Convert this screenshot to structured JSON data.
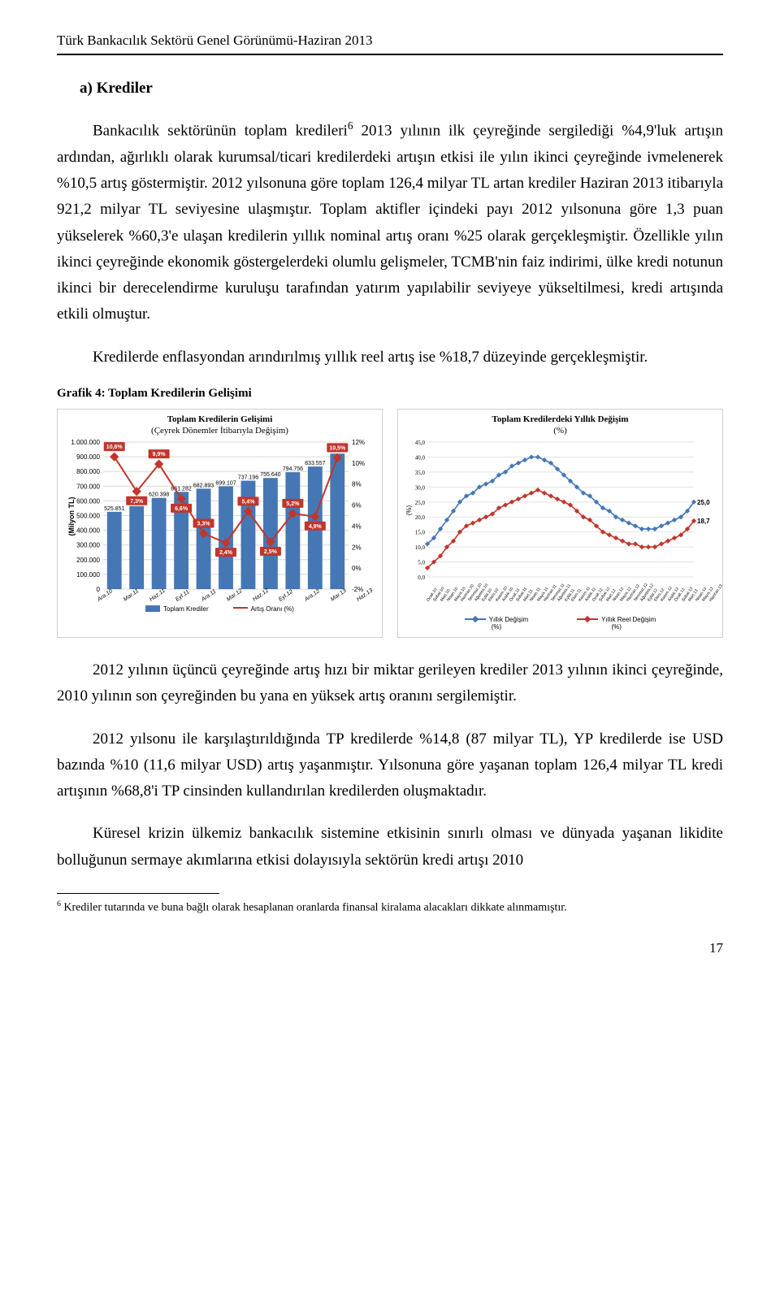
{
  "header": "Türk Bankacılık Sektörü Genel Görünümü-Haziran 2013",
  "section_heading": "a) Krediler",
  "paragraphs": {
    "p1_a": "Bankacılık sektörünün toplam kredileri",
    "p1_sup": "6",
    "p1_b": " 2013 yılının ilk çeyreğinde sergilediği %4,9'luk artışın ardından, ağırlıklı olarak kurumsal/ticari kredilerdeki artışın etkisi ile yılın ikinci çeyreğinde ivmelenerek %10,5 artış göstermiştir. 2012 yılsonuna göre toplam 126,4 milyar TL artan krediler Haziran 2013 itibarıyla 921,2 milyar TL seviyesine ulaşmıştır. Toplam aktifler içindeki payı 2012 yılsonuna göre 1,3 puan yükselerek %60,3'e ulaşan kredilerin yıllık nominal artış oranı %25 olarak gerçekleşmiştir. Özellikle yılın ikinci çeyreğinde ekonomik göstergelerdeki olumlu gelişmeler, TCMB'nin faiz indirimi, ülke kredi notunun ikinci bir derecelendirme kuruluşu tarafından yatırım yapılabilir seviyeye yükseltilmesi, kredi artışında etkili olmuştur.",
    "p2": "Kredilerde enflasyondan arındırılmış yıllık reel artış ise %18,7 düzeyinde gerçekleşmiştir.",
    "p3": "2012 yılının üçüncü çeyreğinde artış hızı bir miktar gerileyen krediler 2013 yılının ikinci çeyreğinde, 2010 yılının son çeyreğinden bu yana en yüksek artış oranını sergilemiştir.",
    "p4": "2012 yılsonu ile karşılaştırıldığında TP kredilerde %14,8 (87 milyar TL), YP kredilerde ise USD bazında %10 (11,6 milyar USD) artış yaşanmıştır. Yılsonuna göre yaşanan toplam 126,4 milyar TL kredi artışının %68,8'i TP cinsinden kullandırılan kredilerden oluşmaktadır.",
    "p5": "Küresel krizin ülkemiz bankacılık sistemine etkisinin sınırlı olması ve dünyada yaşanan likidite bolluğunun sermaye akımlarına etkisi dolayısıyla sektörün kredi artışı 2010"
  },
  "chart_heading": "Grafik 4: Toplam Kredilerin Gelişimi",
  "chart_left": {
    "title": "Toplam Kredilerin Gelişimi",
    "subtitle": "(Çeyrek Dönemler İtibarıyla Değişim)",
    "y_title": "(Milyon TL)",
    "y_ticks": [
      0,
      100000,
      200000,
      300000,
      400000,
      500000,
      600000,
      700000,
      800000,
      900000,
      1000000
    ],
    "y_tick_labels": [
      "0",
      "100.000",
      "200.000",
      "300.000",
      "400.000",
      "500.000",
      "600.000",
      "700.000",
      "800.000",
      "900.000",
      "1.000.000"
    ],
    "x_labels": [
      "Ara.10",
      "Mar.11",
      "Haz.11",
      "Eyl.11",
      "Ara.11",
      "Mar.12",
      "Haz.12",
      "Eyl.12",
      "Ara.12",
      "Mar.13",
      "Haz.13"
    ],
    "bars": [
      525851,
      564303,
      620398,
      661282,
      682893,
      699107,
      737196,
      755640,
      794756,
      833557,
      921178
    ],
    "bar_labels": [
      "525.851",
      "564.303",
      "620.398",
      "661.282",
      "682.893",
      "699.107",
      "737.196",
      "755.640",
      "794.756",
      "833.557",
      "921.178"
    ],
    "pct_values": [
      null,
      7.3,
      9.9,
      6.6,
      3.3,
      2.4,
      5.4,
      2.5,
      5.2,
      4.9,
      10.5
    ],
    "pct_labels": [
      "10,6%",
      "7,3%",
      "9,9%",
      "6,6%",
      "3,3%",
      "2,4%",
      "5,4%",
      "2,5%",
      "5,2%",
      "4,9%",
      "10,5%"
    ],
    "y2_ticks": [
      -2,
      0,
      2,
      4,
      6,
      8,
      10,
      12
    ],
    "y2_tick_labels": [
      "-2%",
      "0%",
      "2%",
      "4%",
      "6%",
      "8%",
      "10%",
      "12%"
    ],
    "bar_color": "#4577b4",
    "line_color": "#c0362c",
    "grid_color": "#d9d9d9",
    "legend_bar": "Toplam Krediler",
    "legend_line": "Artış Oranı (%)"
  },
  "chart_right": {
    "title": "Toplam Kredilerdeki Yıllık Değişim",
    "subtitle": "(%)",
    "y_ticks": [
      0,
      5,
      10,
      15,
      20,
      25,
      30,
      35,
      40,
      45
    ],
    "y_tick_labels": [
      "0,0",
      "5,0",
      "10,0",
      "15,0",
      "20,0",
      "25,0",
      "30,0",
      "35,0",
      "40,0",
      "45,0"
    ],
    "y_axis_label": "(%)",
    "x_labels": [
      "Ocak.10",
      "Şubat.10",
      "Mart.10",
      "Nisan.10",
      "Mayıs.10",
      "Haziran.10",
      "Temmuz.10",
      "Ağustos.10",
      "Eylül.10",
      "Ekim.10",
      "Kasım.10",
      "Aralık.10",
      "Ocak.11",
      "Şubat.11",
      "Mart.11",
      "Nisan.11",
      "Mayıs.11",
      "Haziran.11",
      "Temmuz.11",
      "Ağustos.11",
      "Eylül.11",
      "Ekim.11",
      "Kasım.11",
      "Aralık.11",
      "Ocak.12",
      "Şubat.12",
      "Mart.12",
      "Nisan.12",
      "Mayıs.12",
      "Haziran.12",
      "Temmuz.12",
      "Ağustos.12",
      "Eylül.12",
      "Ekim.12",
      "Kasım.12",
      "Aralık.12",
      "Ocak.13",
      "Şubat.13",
      "Mart.13",
      "Nisan.13",
      "Mayıs.13",
      "Haziran.13"
    ],
    "series_nominal": [
      11,
      13,
      16,
      19,
      22,
      25,
      27,
      28,
      30,
      31,
      32,
      34,
      35,
      37,
      38,
      39,
      40,
      40,
      39,
      38,
      36,
      34,
      32,
      30,
      28,
      27,
      25,
      23,
      22,
      20,
      19,
      18,
      17,
      16,
      16,
      16,
      17,
      18,
      19,
      20,
      22,
      25.0
    ],
    "series_real": [
      3,
      5,
      7,
      10,
      12,
      15,
      17,
      18,
      19,
      20,
      21,
      23,
      24,
      25,
      26,
      27,
      28,
      29,
      28,
      27,
      26,
      25,
      24,
      22,
      20,
      19,
      17,
      15,
      14,
      13,
      12,
      11,
      11,
      10,
      10,
      10,
      11,
      12,
      13,
      14,
      16,
      18.7
    ],
    "end_label_nominal": "25,0",
    "end_label_real": "18,7",
    "line1_color": "#4577b4",
    "line2_color": "#c0362c",
    "grid_color": "#e3e3e3",
    "legend1": "Yıllık Değişim",
    "legend1_sub": "(%)",
    "legend2": "Yıllık Reel Değişim",
    "legend2_sub": "(%)"
  },
  "footnote": {
    "num": "6",
    "text": " Krediler tutarında ve buna bağlı olarak hesaplanan oranlarda finansal kiralama alacakları dikkate alınmamıştır."
  },
  "page_number": "17"
}
